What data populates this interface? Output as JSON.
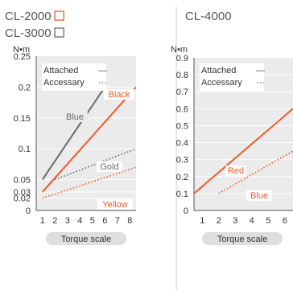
{
  "colors": {
    "orange": "#f05a28",
    "gray": "#6b6b6b",
    "plot_bg": "#ebebeb",
    "grid": "#ffffff",
    "pill": "#dedede"
  },
  "left_panel": {
    "models": [
      {
        "label": "CL-2000",
        "swatch_color": "#f05a28"
      },
      {
        "label": "CL-3000",
        "swatch_color": "#6b6b6b"
      }
    ]
  },
  "right_panel": {
    "models": [
      {
        "label": "CL-4000"
      }
    ]
  },
  "chart_data": [
    {
      "type": "line",
      "ylabel": "N•m",
      "xlabel": "Torque scale",
      "xlim": [
        0.5,
        8.5
      ],
      "ylim": [
        0,
        0.25
      ],
      "x_ticks": [
        1,
        2,
        3,
        4,
        5,
        6,
        7,
        8
      ],
      "y_ticks": [
        0,
        0.02,
        0.03,
        0.05,
        0.1,
        0.15,
        0.2,
        0.25
      ],
      "grid": true,
      "legend": {
        "position": "top-left",
        "entries": [
          {
            "label": "Attached",
            "style": "solid",
            "symbol": "—"
          },
          {
            "label": "Accessary",
            "style": "dotted",
            "symbol": "···"
          }
        ]
      },
      "series": [
        {
          "name": "Blue",
          "color": "#6b6b6b",
          "style": "solid",
          "x": [
            1,
            6
          ],
          "y": [
            0.05,
            0.2
          ]
        },
        {
          "name": "Black",
          "color": "#f05a28",
          "style": "solid",
          "x": [
            1,
            8.5
          ],
          "y": [
            0.03,
            0.2
          ]
        },
        {
          "name": "Gold",
          "color": "#6b6b6b",
          "style": "dotted",
          "x": [
            2,
            8.5
          ],
          "y": [
            0.05,
            0.1
          ]
        },
        {
          "name": "Yellow",
          "color": "#f05a28",
          "style": "dotted",
          "x": [
            1,
            8.5
          ],
          "y": [
            0.02,
            0.07
          ]
        }
      ]
    },
    {
      "type": "line",
      "ylabel": "N•m",
      "xlabel": "Torque scale",
      "xlim": [
        0.5,
        6.5
      ],
      "ylim": [
        0,
        0.9
      ],
      "x_ticks": [
        1,
        2,
        3,
        4,
        5,
        6
      ],
      "y_ticks": [
        0,
        0.1,
        0.2,
        0.3,
        0.4,
        0.5,
        0.6,
        0.7,
        0.8,
        0.9
      ],
      "grid": true,
      "legend": {
        "position": "top-left",
        "entries": [
          {
            "label": "Attached",
            "style": "solid",
            "symbol": "—"
          },
          {
            "label": "Accessary",
            "style": "dotted",
            "symbol": "···"
          }
        ]
      },
      "series": [
        {
          "name": "Red",
          "color": "#f05a28",
          "style": "solid",
          "x": [
            0.5,
            6.5
          ],
          "y": [
            0.1,
            0.6
          ]
        },
        {
          "name": "Blue",
          "color": "#f05a28",
          "style": "dotted",
          "x": [
            2,
            6.5
          ],
          "y": [
            0.1,
            0.35
          ]
        }
      ]
    }
  ]
}
